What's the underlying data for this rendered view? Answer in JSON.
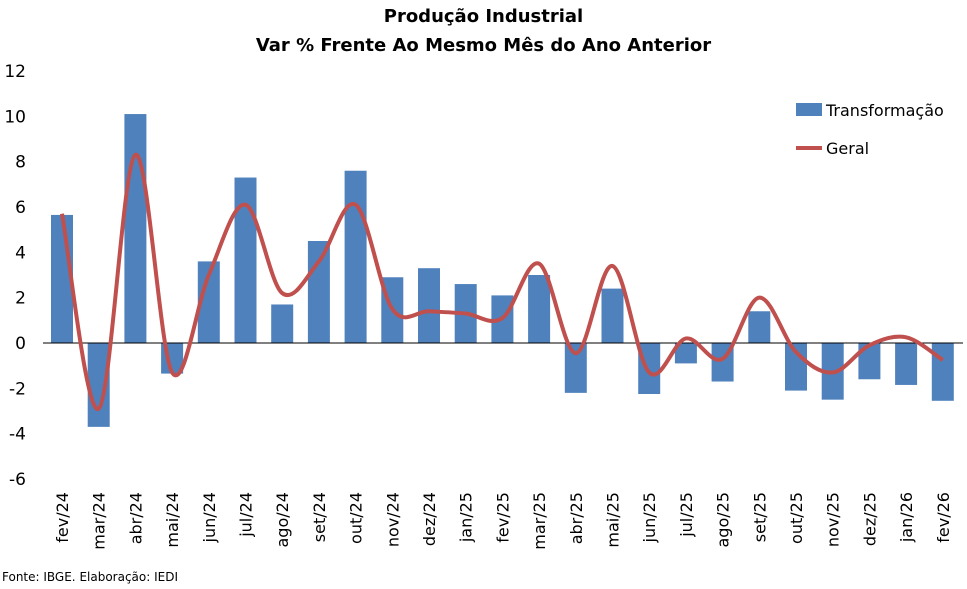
{
  "chart_data": {
    "type": "bar",
    "title": "Produção Industrial",
    "subtitle": "Var % Frente Ao Mesmo Mês do Ano Anterior",
    "xlabel": "",
    "ylabel": "",
    "ylim": [
      -6,
      12
    ],
    "yticks": [
      "-6",
      "-4",
      "-2",
      "0",
      "2",
      "4",
      "6",
      "8",
      "10",
      "12"
    ],
    "grid": false,
    "legend_position": "top-right",
    "categories": [
      "fev/24",
      "mar/24",
      "abr/24",
      "mai/24",
      "jun/24",
      "jul/24",
      "ago/24",
      "set/24",
      "out/24",
      "nov/24",
      "dez/24",
      "jan/25",
      "fev/25",
      "mar/25",
      "abr/25",
      "mai/25",
      "jun/25",
      "jul/25",
      "ago/25",
      "set/25",
      "out/25",
      "nov/25",
      "dez/25",
      "jan/26",
      "fev/26"
    ],
    "series": [
      {
        "name": "Transformação",
        "type": "bar",
        "color": "#4F81BD",
        "values": [
          5.65,
          -3.7,
          10.1,
          -1.35,
          3.6,
          7.3,
          1.7,
          4.5,
          7.6,
          2.9,
          3.3,
          2.6,
          2.1,
          3.0,
          -2.2,
          2.4,
          -2.25,
          -0.9,
          -1.7,
          1.4,
          -2.1,
          -2.5,
          -1.6,
          -1.85,
          -2.55
        ]
      },
      {
        "name": "Geral",
        "type": "line",
        "color": "#C0504D",
        "values": [
          5.7,
          -2.9,
          8.3,
          -1.3,
          3.0,
          6.1,
          2.2,
          3.6,
          6.1,
          1.5,
          1.4,
          1.3,
          1.1,
          3.5,
          -0.45,
          3.4,
          -1.3,
          0.2,
          -0.7,
          2.0,
          -0.4,
          -1.3,
          -0.1,
          0.25,
          -0.75
        ]
      }
    ]
  },
  "source": "Fonte: IBGE. Elaboração: IEDI"
}
